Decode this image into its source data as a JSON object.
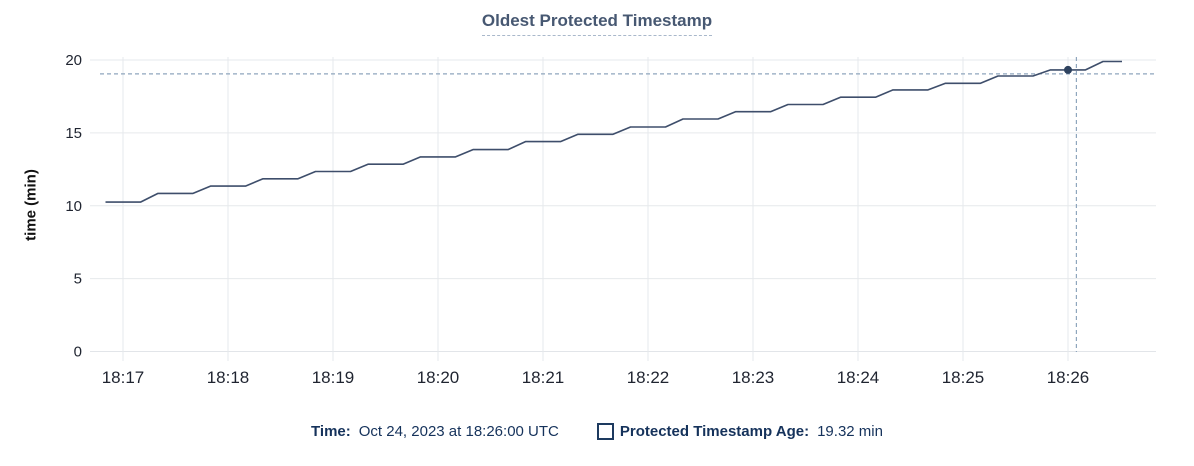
{
  "chart_data": {
    "type": "line",
    "title": "Oldest Protected Timestamp",
    "ylabel": "time (min)",
    "xlabel": "",
    "x_tick_labels": [
      "18:17",
      "18:18",
      "18:19",
      "18:20",
      "18:21",
      "18:22",
      "18:23",
      "18:24",
      "18:25",
      "18:26"
    ],
    "x_tick_minutes": [
      0,
      1,
      2,
      3,
      4,
      5,
      6,
      7,
      8,
      9
    ],
    "y_ticks": [
      0,
      5,
      10,
      15,
      20
    ],
    "ylim": [
      0,
      20
    ],
    "xlim_minutes": [
      -0.31,
      9.84
    ],
    "grid": true,
    "legend_position": "bottom",
    "series": [
      {
        "name": "Protected Timestamp Age",
        "unit": "min",
        "points": [
          [
            -0.167,
            10.25
          ],
          [
            0.167,
            10.25
          ],
          [
            0.333,
            10.85
          ],
          [
            0.667,
            10.85
          ],
          [
            0.833,
            11.35
          ],
          [
            1.167,
            11.35
          ],
          [
            1.333,
            11.85
          ],
          [
            1.667,
            11.85
          ],
          [
            1.833,
            12.35
          ],
          [
            2.167,
            12.35
          ],
          [
            2.333,
            12.85
          ],
          [
            2.667,
            12.85
          ],
          [
            2.833,
            13.35
          ],
          [
            3.167,
            13.35
          ],
          [
            3.333,
            13.85
          ],
          [
            3.667,
            13.85
          ],
          [
            3.833,
            14.4
          ],
          [
            4.167,
            14.4
          ],
          [
            4.333,
            14.9
          ],
          [
            4.667,
            14.9
          ],
          [
            4.833,
            15.4
          ],
          [
            5.167,
            15.4
          ],
          [
            5.333,
            15.95
          ],
          [
            5.667,
            15.95
          ],
          [
            5.833,
            16.45
          ],
          [
            6.167,
            16.45
          ],
          [
            6.333,
            16.95
          ],
          [
            6.667,
            16.95
          ],
          [
            6.833,
            17.45
          ],
          [
            7.167,
            17.45
          ],
          [
            7.333,
            17.95
          ],
          [
            7.667,
            17.95
          ],
          [
            7.833,
            18.4
          ],
          [
            8.167,
            18.4
          ],
          [
            8.333,
            18.9
          ],
          [
            8.667,
            18.9
          ],
          [
            8.833,
            19.32
          ],
          [
            9.167,
            19.32
          ],
          [
            9.333,
            19.9
          ],
          [
            9.514,
            19.9
          ]
        ]
      }
    ],
    "hover": {
      "point_minutes": 9.0,
      "point_value": 19.32,
      "crosshair_x_minutes": 9.08,
      "crosshair_y_value": 19.05
    }
  },
  "legend": {
    "time_label": "Time:",
    "time_value": "Oct 24, 2023 at 18:26:00 UTC",
    "series_label": "Protected Timestamp Age:",
    "series_value": "19.32 min"
  },
  "colors": {
    "series_line": "#3e4e6b",
    "hover_dot": "#2e425f",
    "crosshair": "#8fa6bd",
    "grid": "#e6e9ec",
    "axis_line": "#e2e5e9",
    "axis_text": "#1f2430",
    "title_text": "#475872",
    "legend_text": "#15325b"
  }
}
